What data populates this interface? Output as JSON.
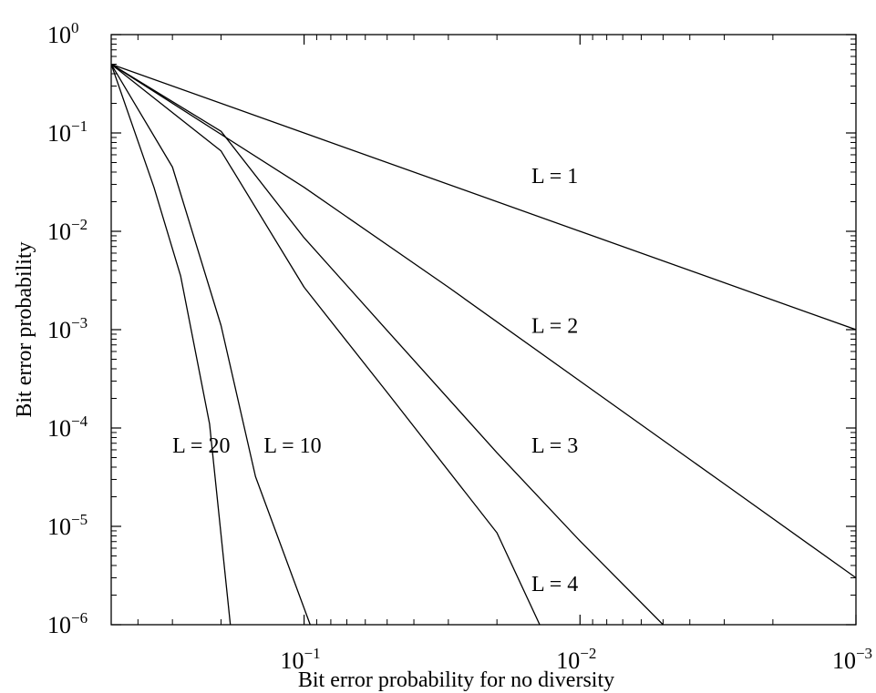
{
  "chart_data": {
    "type": "line",
    "title": "",
    "xlabel": "Bit error probability for no diversity",
    "ylabel": "Bit error probability",
    "x_scale": "log",
    "y_scale": "log",
    "x_reversed": true,
    "xlim": [
      0.5,
      0.001
    ],
    "ylim": [
      1e-06,
      1
    ],
    "grid": false,
    "x_ticks": [
      {
        "value": 0.1,
        "base": "10",
        "exp": "−1"
      },
      {
        "value": 0.01,
        "base": "10",
        "exp": "−2"
      },
      {
        "value": 0.001,
        "base": "10",
        "exp": "−3"
      }
    ],
    "y_ticks": [
      {
        "value": 1,
        "base": "10",
        "exp": "0"
      },
      {
        "value": 0.1,
        "base": "10",
        "exp": "−1"
      },
      {
        "value": 0.01,
        "base": "10",
        "exp": "−2"
      },
      {
        "value": 0.001,
        "base": "10",
        "exp": "−3"
      },
      {
        "value": 0.0001,
        "base": "10",
        "exp": "−4"
      },
      {
        "value": 1e-05,
        "base": "10",
        "exp": "−5"
      },
      {
        "value": 1e-06,
        "base": "10",
        "exp": "−6"
      }
    ],
    "series": [
      {
        "name": "L = 1",
        "label_at": [
          0.015,
          0.031
        ],
        "points": [
          [
            0.5,
            0.5
          ],
          [
            0.1,
            0.1
          ],
          [
            0.01,
            0.01
          ],
          [
            0.001,
            0.001
          ]
        ]
      },
      {
        "name": "L = 2",
        "label_at": [
          0.015,
          0.00093
        ],
        "points": [
          [
            0.5,
            0.5
          ],
          [
            0.1,
            0.028
          ],
          [
            0.03,
            0.0027
          ],
          [
            0.01,
            0.0003
          ],
          [
            0.003,
            2.7e-05
          ],
          [
            0.001,
            3e-06
          ]
        ]
      },
      {
        "name": "L = 3",
        "label_at": [
          0.015,
          5.6e-05
        ],
        "points": [
          [
            0.5,
            0.5
          ],
          [
            0.2,
            0.104
          ],
          [
            0.1,
            0.0086
          ],
          [
            0.05,
            0.00098
          ],
          [
            0.02,
            5.6e-05
          ],
          [
            0.01,
            7.1e-06
          ],
          [
            0.005,
            1e-06
          ]
        ]
      },
      {
        "name": "L = 4",
        "label_at": [
          0.015,
          2.2e-06
        ],
        "points": [
          [
            0.5,
            0.5
          ],
          [
            0.2,
            0.0655
          ],
          [
            0.1,
            0.0027
          ],
          [
            0.05,
            0.00023
          ],
          [
            0.02,
            8.6e-06
          ],
          [
            0.014,
            1e-06
          ]
        ]
      },
      {
        "name": "L = 10",
        "label_at": [
          0.14,
          5.6e-05
        ],
        "points": [
          [
            0.5,
            0.5
          ],
          [
            0.3,
            0.045
          ],
          [
            0.2,
            0.0011
          ],
          [
            0.15,
            3.2e-05
          ],
          [
            0.095,
            1e-06
          ]
        ]
      },
      {
        "name": "L = 20",
        "label_at": [
          0.3,
          5.6e-05
        ],
        "points": [
          [
            0.5,
            0.5
          ],
          [
            0.35,
            0.028
          ],
          [
            0.28,
            0.0035
          ],
          [
            0.22,
            0.00011
          ],
          [
            0.185,
            1e-06
          ]
        ]
      }
    ]
  }
}
